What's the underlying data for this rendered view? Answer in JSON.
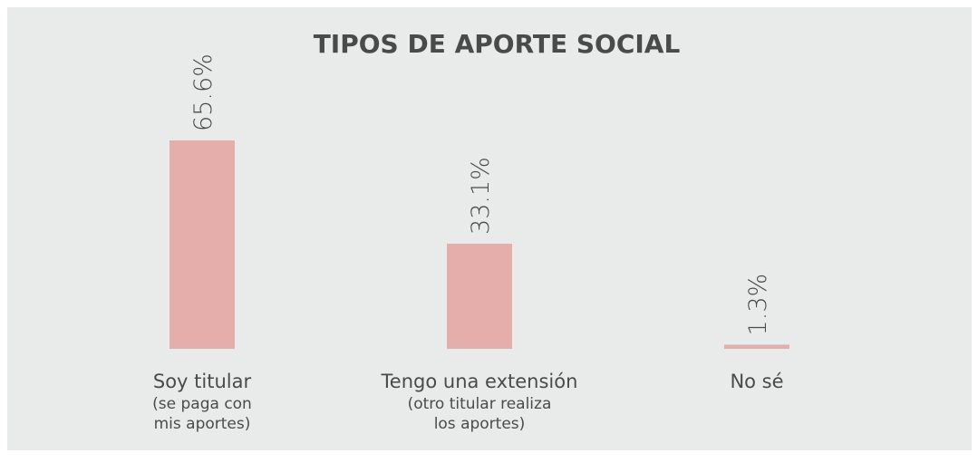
{
  "chart_data": {
    "type": "bar",
    "title": "TIPOS DE APORTE SOCIAL",
    "categories": [
      "Soy titular",
      "Tengo una extensión",
      "No sé"
    ],
    "category_notes": [
      [
        "(se paga con",
        "mis aportes)"
      ],
      [
        "(otro titular realiza",
        "los aportes)"
      ],
      null
    ],
    "values": [
      65.6,
      33.1,
      1.3
    ],
    "value_labels": [
      "65.6%",
      "33.1%",
      "1.3%"
    ],
    "color": "#e5aeab"
  }
}
